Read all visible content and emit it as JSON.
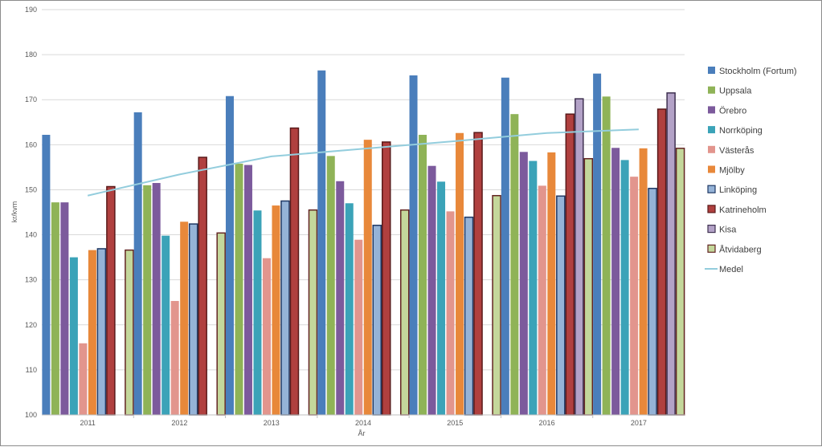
{
  "chart_data": {
    "type": "bar",
    "title": "",
    "xlabel": "År",
    "ylabel": "kr/kvm",
    "ylim": [
      100,
      190
    ],
    "ytick_values": [
      100,
      110,
      120,
      130,
      140,
      150,
      160,
      170,
      180,
      190
    ],
    "ytick_labels": [
      "100",
      "110",
      "120",
      "130",
      "140",
      "150",
      "160",
      "170",
      "180",
      "190"
    ],
    "grid": true,
    "legend_position": "right",
    "categories": [
      "2011",
      "2012",
      "2013",
      "2014",
      "2015",
      "2016",
      "2017"
    ],
    "series": [
      {
        "name": "Stockholm (Fortum)",
        "color": "#4a7ebb",
        "outline": "",
        "values": [
          162.2,
          167.2,
          170.8,
          176.5,
          175.4,
          174.9,
          175.8
        ]
      },
      {
        "name": "Uppsala",
        "color": "#8fb357",
        "outline": "",
        "values": [
          147.2,
          151.0,
          155.8,
          157.5,
          162.2,
          166.8,
          170.7
        ]
      },
      {
        "name": "Örebro",
        "color": "#7c5a9c",
        "outline": "",
        "values": [
          147.2,
          151.5,
          155.5,
          151.9,
          155.3,
          158.4,
          159.3
        ]
      },
      {
        "name": "Norrköping",
        "color": "#3ba3b8",
        "outline": "",
        "values": [
          135.0,
          139.8,
          145.4,
          147.0,
          151.8,
          156.4,
          156.6
        ]
      },
      {
        "name": "Västerås",
        "color": "#e2958d",
        "outline": "",
        "values": [
          115.9,
          125.3,
          134.8,
          138.9,
          145.2,
          150.9,
          152.9
        ]
      },
      {
        "name": "Mjölby",
        "color": "#e8883a",
        "outline": "",
        "values": [
          136.6,
          142.9,
          146.5,
          161.1,
          162.6,
          158.3,
          159.2
        ]
      },
      {
        "name": "Linköping",
        "color": "#95b3d7",
        "outline": "#1f3864",
        "values": [
          136.9,
          142.4,
          147.5,
          142.1,
          143.9,
          148.6,
          150.3
        ]
      },
      {
        "name": "Katrineholm",
        "color": "#b0403f",
        "outline": "#5a1a1a",
        "values": [
          150.7,
          157.2,
          163.7,
          160.6,
          162.7,
          166.8,
          167.9
        ]
      },
      {
        "name": "Kisa",
        "color": "#b3a2c7",
        "outline": "#3f3151",
        "values": [
          null,
          null,
          null,
          null,
          null,
          170.2,
          171.5
        ]
      },
      {
        "name": "Åtvidaberg",
        "color": "#c4d79b",
        "outline": "#632523",
        "values": [
          136.6,
          140.4,
          145.5,
          145.5,
          148.7,
          156.9,
          159.2
        ]
      }
    ],
    "line_series": {
      "name": "Medel",
      "color": "#93cddd",
      "values": [
        148.7,
        153.4,
        157.4,
        159.1,
        160.8,
        162.6,
        163.4
      ]
    }
  }
}
